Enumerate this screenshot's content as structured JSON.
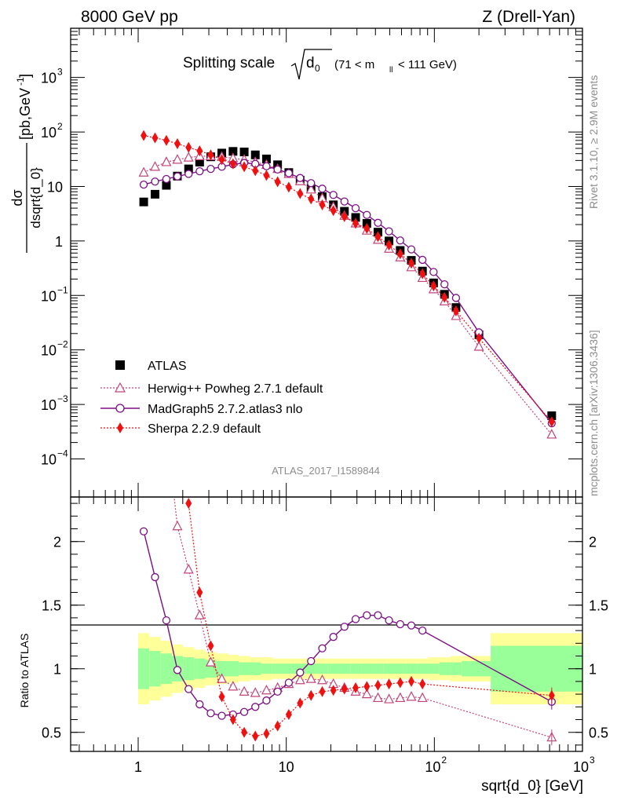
{
  "header": {
    "left": "8000 GeV pp",
    "right": "Z (Drell-Yan)"
  },
  "side": {
    "rivet": "Rivet 3.1.10, ≥ 2.9M events",
    "mcplots": "mcplots.cern.ch [arXiv:1306.3436]"
  },
  "chart_data": [
    {
      "type": "scatter",
      "title_main": "Splitting scale",
      "title_sqrt": "d",
      "title_sub": "0",
      "title_range_a": "(71 < m",
      "title_range_sub": "ll",
      "title_range_b": " < 111 GeV)",
      "ylabel_top": "dσ",
      "ylabel_bottom": "dsqrt{d_0}",
      "ylabel_unit": "[pb,GeV",
      "ylabel_unit_sup": "-1",
      "ylabel_unit_end": "]",
      "xscale": "log",
      "yscale": "log",
      "xlim": [
        0.35,
        1000
      ],
      "ylim": [
        2e-05,
        8000
      ],
      "yticks": [
        {
          "v": 1000,
          "base": "10",
          "exp": "3"
        },
        {
          "v": 100,
          "base": "10",
          "exp": "2"
        },
        {
          "v": 10,
          "base": "10",
          "exp": ""
        },
        {
          "v": 1,
          "base": "1",
          "exp": ""
        },
        {
          "v": 0.1,
          "base": "10",
          "exp": "−1"
        },
        {
          "v": 0.01,
          "base": "10",
          "exp": "−2"
        },
        {
          "v": 0.001,
          "base": "10",
          "exp": "−3"
        },
        {
          "v": 0.0001,
          "base": "10",
          "exp": "−4"
        }
      ],
      "watermark": "ATLAS_2017_I1589844",
      "legend_position": "bottom-left",
      "x": [
        1.09,
        1.3,
        1.55,
        1.84,
        2.19,
        2.6,
        3.09,
        3.67,
        4.37,
        5.2,
        6.18,
        7.35,
        8.74,
        10.4,
        12.4,
        14.7,
        17.5,
        20.8,
        24.7,
        29.4,
        35.0,
        41.6,
        49.4,
        58.8,
        69.9,
        83.1,
        98.8,
        117,
        140,
        200,
        620
      ],
      "series": [
        {
          "name": "ATLAS",
          "color": "#000000",
          "marker": "square",
          "values": [
            5.2,
            7.2,
            10.5,
            15.5,
            21,
            28,
            35,
            41,
            44,
            43,
            38,
            32,
            25,
            18,
            13,
            9.1,
            6.5,
            4.6,
            3.5,
            2.7,
            2.1,
            1.45,
            1.0,
            0.67,
            0.44,
            0.28,
            0.17,
            0.105,
            0.06,
            0.019,
            0.00062
          ]
        },
        {
          "name": "Herwig++ Powheg 2.7.1 default",
          "color": "#c2457a",
          "marker": "open-triangle",
          "values": [
            18,
            23,
            28,
            31,
            34,
            36,
            36,
            35,
            33,
            31,
            28,
            25,
            21,
            17,
            12.5,
            8.8,
            6.1,
            4.2,
            2.9,
            2.1,
            1.55,
            1.05,
            0.72,
            0.5,
            0.33,
            0.21,
            0.13,
            0.078,
            0.042,
            0.0115,
            0.00028
          ]
        },
        {
          "name": "MadGraph5 2.7.2.atlas3 nlo",
          "color": "#7b0f84",
          "marker": "open-circle",
          "values": [
            10.8,
            12.3,
            13.7,
            15.3,
            17,
            19,
            21,
            23,
            25.5,
            27,
            26,
            23.5,
            20.5,
            17.5,
            14.3,
            11.5,
            9.1,
            7.0,
            5.3,
            4.0,
            3.0,
            2.15,
            1.5,
            1.02,
            0.7,
            0.45,
            0.27,
            0.16,
            0.09,
            0.021,
            0.00045
          ]
        },
        {
          "name": "Sherpa 2.2.9 default",
          "color": "#ee1111",
          "marker": "diamond",
          "values": [
            86,
            78,
            70,
            61,
            52,
            45,
            38,
            31,
            26,
            23,
            19.5,
            16,
            12.2,
            9.7,
            7.4,
            5.9,
            4.6,
            3.6,
            2.8,
            2.1,
            1.7,
            1.2,
            0.84,
            0.58,
            0.39,
            0.25,
            0.15,
            0.092,
            0.052,
            0.0165,
            0.00048
          ]
        }
      ]
    },
    {
      "type": "scatter",
      "ylabel": "Ratio to ATLAS",
      "xlabel": "sqrt{d_0} [GeV]",
      "xscale": "log",
      "xlim": [
        0.35,
        1000
      ],
      "ylim": [
        0.35,
        2.35
      ],
      "yticks": [
        {
          "v": 2,
          "label": "2"
        },
        {
          "v": 1.5,
          "label": "1.5"
        },
        {
          "v": 1,
          "label": "1"
        },
        {
          "v": 0.5,
          "label": "0.5"
        }
      ],
      "xticks": [
        {
          "v": 1,
          "base": "1",
          "exp": ""
        },
        {
          "v": 10,
          "base": "10",
          "exp": ""
        },
        {
          "v": 100,
          "base": "10",
          "exp": "2"
        },
        {
          "v": 1000,
          "base": "10",
          "exp": "3"
        }
      ],
      "band_edges": [
        1.0,
        1.19,
        1.42,
        1.69,
        2.01,
        2.39,
        2.84,
        3.38,
        4.02,
        4.78,
        5.69,
        6.76,
        8.04,
        9.56,
        11.37,
        13.52,
        16.08,
        19.12,
        22.74,
        27.04,
        32.16,
        38.24,
        45.48,
        54.09,
        64.32,
        76.49,
        90.97,
        108.2,
        128.6,
        153.0,
        240,
        1000
      ],
      "band_inner": [
        0.16,
        0.14,
        0.12,
        0.1,
        0.09,
        0.08,
        0.07,
        0.06,
        0.06,
        0.05,
        0.05,
        0.04,
        0.04,
        0.04,
        0.04,
        0.04,
        0.04,
        0.04,
        0.04,
        0.04,
        0.04,
        0.04,
        0.04,
        0.04,
        0.04,
        0.04,
        0.04,
        0.05,
        0.05,
        0.06,
        0.18
      ],
      "band_outer": [
        0.28,
        0.25,
        0.22,
        0.19,
        0.17,
        0.15,
        0.13,
        0.12,
        0.11,
        0.1,
        0.09,
        0.09,
        0.08,
        0.08,
        0.08,
        0.08,
        0.08,
        0.08,
        0.08,
        0.08,
        0.08,
        0.08,
        0.08,
        0.08,
        0.08,
        0.08,
        0.09,
        0.09,
        0.1,
        0.1,
        0.28
      ],
      "x": [
        1.09,
        1.3,
        1.55,
        1.84,
        2.19,
        2.6,
        3.09,
        3.67,
        4.37,
        5.2,
        6.18,
        7.35,
        8.74,
        10.4,
        12.4,
        14.7,
        17.5,
        20.8,
        24.7,
        29.4,
        35.0,
        41.6,
        49.4,
        58.8,
        69.9,
        83.1,
        620
      ],
      "series": [
        {
          "name": "Herwig++ Powheg 2.7.1 default",
          "color": "#c2457a",
          "marker": "open-triangle",
          "x_start": 1.84,
          "values": [
            null,
            null,
            null,
            2.12,
            1.78,
            1.42,
            1.05,
            0.92,
            0.86,
            0.82,
            0.81,
            0.83,
            0.85,
            0.88,
            0.91,
            0.92,
            0.91,
            0.88,
            0.85,
            0.82,
            0.8,
            0.77,
            0.76,
            0.77,
            0.78,
            0.77,
            0.46
          ]
        },
        {
          "name": "MadGraph5 2.7.2.atlas3 nlo",
          "color": "#7b0f84",
          "marker": "open-circle",
          "values": [
            2.08,
            1.72,
            1.38,
            0.99,
            0.84,
            0.72,
            0.65,
            0.63,
            0.64,
            0.66,
            0.7,
            0.75,
            0.82,
            0.89,
            0.97,
            1.06,
            1.16,
            1.25,
            1.33,
            1.39,
            1.42,
            1.42,
            1.38,
            1.35,
            1.34,
            1.3,
            0.74
          ]
        },
        {
          "name": "Sherpa 2.2.9 default",
          "color": "#ee1111",
          "marker": "diamond",
          "values": [
            null,
            null,
            null,
            null,
            2.3,
            1.6,
            1.18,
            0.78,
            0.6,
            0.5,
            0.47,
            0.49,
            0.55,
            0.64,
            0.73,
            0.79,
            0.82,
            0.83,
            0.84,
            0.85,
            0.86,
            0.87,
            0.88,
            0.89,
            0.9,
            0.88,
            0.79
          ]
        }
      ]
    }
  ]
}
